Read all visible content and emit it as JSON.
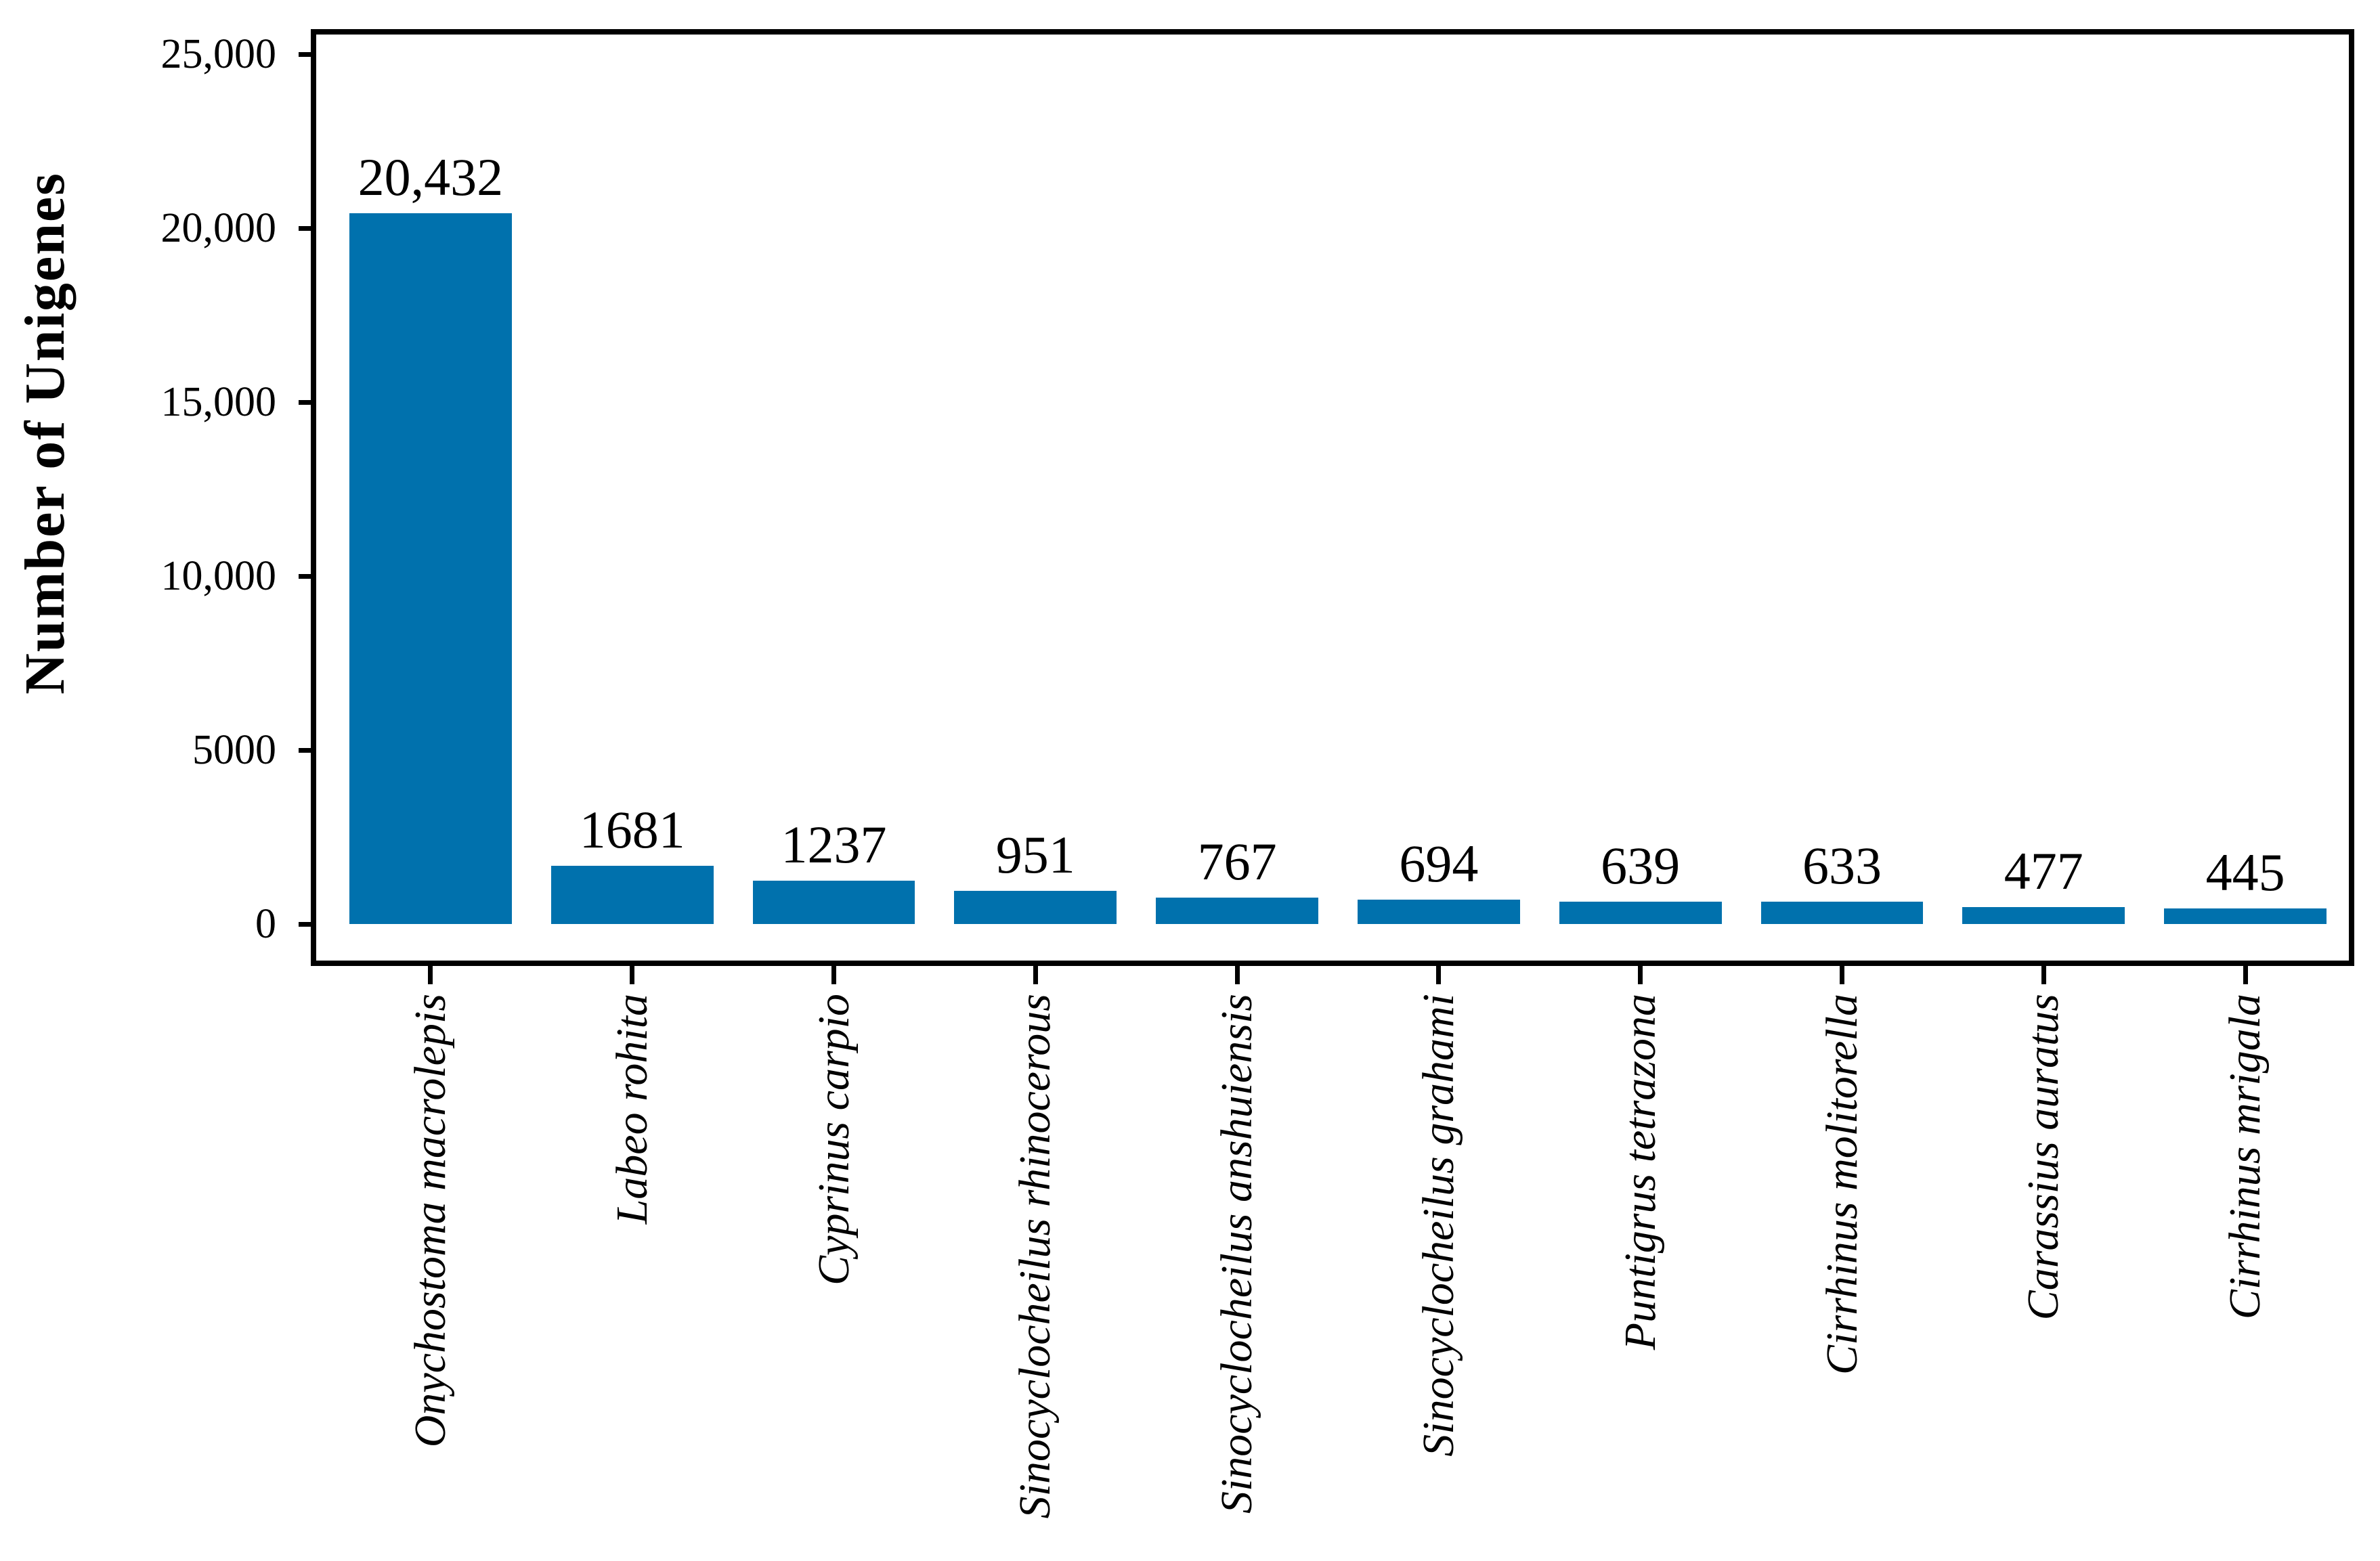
{
  "chart_data": {
    "type": "bar",
    "title": "",
    "xlabel": "",
    "ylabel": "Number of Unigenes",
    "categories": [
      "Onychostoma macrolepis",
      "Labeo rohita",
      "Cyprinus carpio",
      "Sinocyclocheilus rhinocerous",
      "Sinocyclocheilus anshuiensis",
      "Sinocyclocheilus grahami",
      "Puntigrus tetrazona",
      "Cirrhinus molitorella",
      "Carassius auratus",
      "Cirrhinus mrigala"
    ],
    "values": [
      20432,
      1681,
      1237,
      951,
      767,
      694,
      639,
      633,
      477,
      445
    ],
    "value_labels": [
      "20,432",
      "1681",
      "1237",
      "951",
      "767",
      "694",
      "639",
      "633",
      "477",
      "445"
    ],
    "y_ticks": [
      {
        "value": 0,
        "label": "0"
      },
      {
        "value": 5000,
        "label": "5000"
      },
      {
        "value": 10000,
        "label": "10,000"
      },
      {
        "value": 15000,
        "label": "15,000"
      },
      {
        "value": 20000,
        "label": "20,000"
      },
      {
        "value": 25000,
        "label": "25,000"
      }
    ],
    "ylim": [
      0,
      25600
    ],
    "grid": false,
    "legend": null,
    "bar_color": "#0071ad",
    "axis_color": "#000000",
    "text_color": "#000000",
    "background_color": "#ffffff"
  }
}
